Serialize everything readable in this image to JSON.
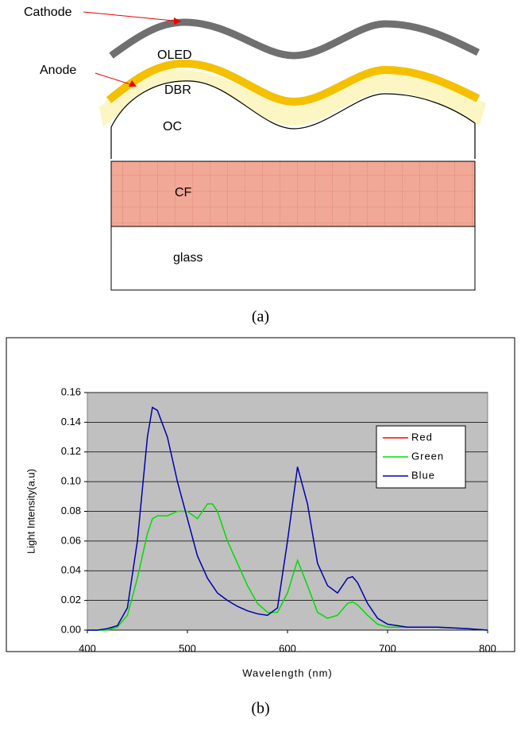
{
  "diagram": {
    "labels": {
      "cathode": "Cathode",
      "anode": "Anode",
      "oled": "OLED",
      "dbr": "DBR",
      "oc": "OC",
      "cf": "CF",
      "glass": "glass"
    },
    "caption": "(a)"
  },
  "caption": "(b)",
  "chart_data": {
    "type": "line",
    "x_label": "Wavelength (nm)",
    "y_label": "Light Intensity(a.u)",
    "x": [
      400,
      410,
      420,
      430,
      440,
      450,
      460,
      465,
      470,
      480,
      490,
      500,
      510,
      520,
      525,
      530,
      540,
      550,
      560,
      570,
      580,
      590,
      600,
      610,
      620,
      630,
      640,
      650,
      660,
      665,
      670,
      680,
      690,
      700,
      720,
      750,
      780,
      800
    ],
    "series": [
      {
        "name": "Red",
        "color": "#ff0000",
        "values": [
          null,
          null,
          null,
          null,
          null,
          null,
          null,
          null,
          null,
          null,
          null,
          null,
          null,
          null,
          null,
          null,
          null,
          null,
          null,
          null,
          null,
          null,
          null,
          null,
          null,
          null,
          null,
          null,
          null,
          null,
          null,
          null,
          null,
          null,
          null,
          null,
          null,
          null
        ]
      },
      {
        "name": "Green",
        "color": "#00dd00",
        "values": [
          0,
          0,
          0,
          0.002,
          0.01,
          0.035,
          0.065,
          0.075,
          0.077,
          0.077,
          0.08,
          0.08,
          0.075,
          0.085,
          0.085,
          0.08,
          0.06,
          0.045,
          0.03,
          0.018,
          0.012,
          0.012,
          0.025,
          0.047,
          0.03,
          0.012,
          0.008,
          0.01,
          0.018,
          0.019,
          0.017,
          0.01,
          0.004,
          0.002,
          0.002,
          0.002,
          0.001,
          0
        ]
      },
      {
        "name": "Blue",
        "color": "#0000aa",
        "values": [
          0,
          0,
          0.001,
          0.003,
          0.015,
          0.06,
          0.13,
          0.15,
          0.148,
          0.13,
          0.1,
          0.075,
          0.05,
          0.035,
          0.03,
          0.025,
          0.02,
          0.016,
          0.013,
          0.011,
          0.01,
          0.015,
          0.06,
          0.11,
          0.085,
          0.045,
          0.03,
          0.025,
          0.035,
          0.036,
          0.032,
          0.018,
          0.008,
          0.004,
          0.002,
          0.002,
          0.001,
          0
        ]
      }
    ],
    "xlim": [
      400,
      800
    ],
    "xticks": [
      400,
      500,
      600,
      700,
      800
    ],
    "ylim": [
      0,
      0.16
    ],
    "yticks": [
      {
        "value": 0,
        "label": "0.00"
      },
      {
        "value": 0.02,
        "label": "0.02"
      },
      {
        "value": 0.04,
        "label": "0.04"
      },
      {
        "value": 0.06,
        "label": "0.06"
      },
      {
        "value": 0.08,
        "label": "0.08"
      },
      {
        "value": 0.1,
        "label": "0.10"
      },
      {
        "value": 0.12,
        "label": "0.12"
      },
      {
        "value": 0.14,
        "label": "0.14"
      },
      {
        "value": 0.16,
        "label": "0.16"
      }
    ],
    "grid": true,
    "legend": "upper-right",
    "plot_background": "#c0c0c0"
  }
}
